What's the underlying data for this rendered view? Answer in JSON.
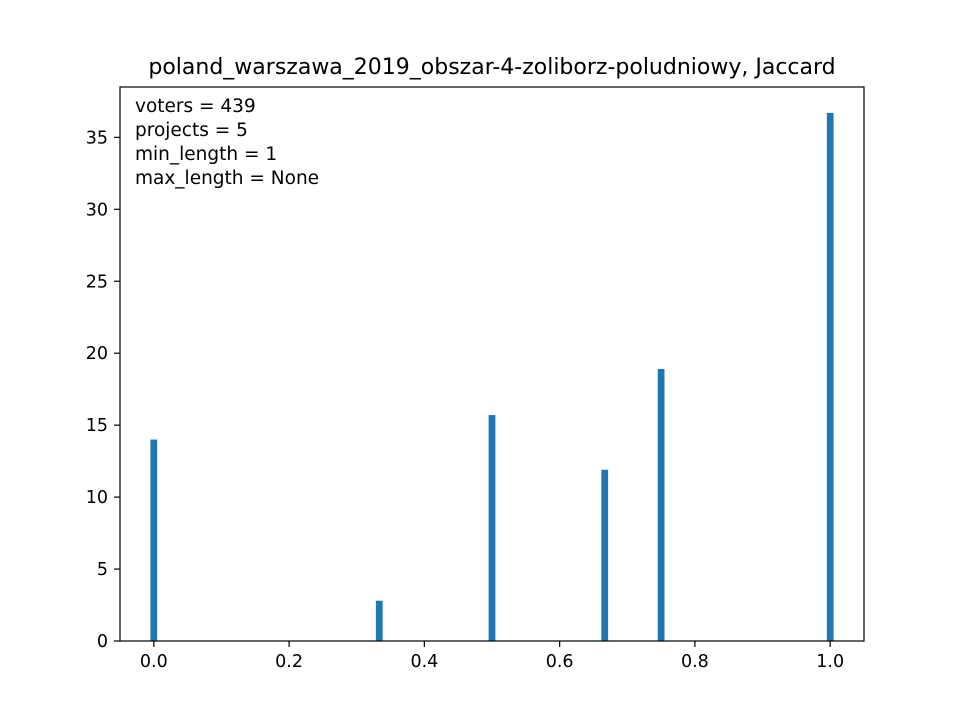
{
  "chart_data": {
    "type": "bar",
    "title": "poland_warszawa_2019_obszar-4-zoliborz-poludniowy, Jaccard",
    "xlabel": "",
    "ylabel": "",
    "xlim": [
      -0.05,
      1.05
    ],
    "ylim": [
      0,
      38.5
    ],
    "x_ticks": [
      0.0,
      0.2,
      0.4,
      0.6,
      0.8,
      1.0
    ],
    "x_tick_labels": [
      "0.0",
      "0.2",
      "0.4",
      "0.6",
      "0.8",
      "1.0"
    ],
    "y_ticks": [
      0,
      5,
      10,
      15,
      20,
      25,
      30,
      35
    ],
    "y_tick_labels": [
      "0",
      "5",
      "10",
      "15",
      "20",
      "25",
      "30",
      "35"
    ],
    "bar_width": 0.01,
    "color": "#1f77b4",
    "grid": false,
    "bars": [
      {
        "x": 0.0,
        "value": 14.0
      },
      {
        "x": 0.3333,
        "value": 2.8
      },
      {
        "x": 0.5,
        "value": 15.7
      },
      {
        "x": 0.6667,
        "value": 11.9
      },
      {
        "x": 0.75,
        "value": 18.9
      },
      {
        "x": 1.0,
        "value": 36.7
      }
    ],
    "annotations": [
      "voters = 439",
      "projects = 5",
      "min_length = 1",
      "max_length = None"
    ]
  }
}
